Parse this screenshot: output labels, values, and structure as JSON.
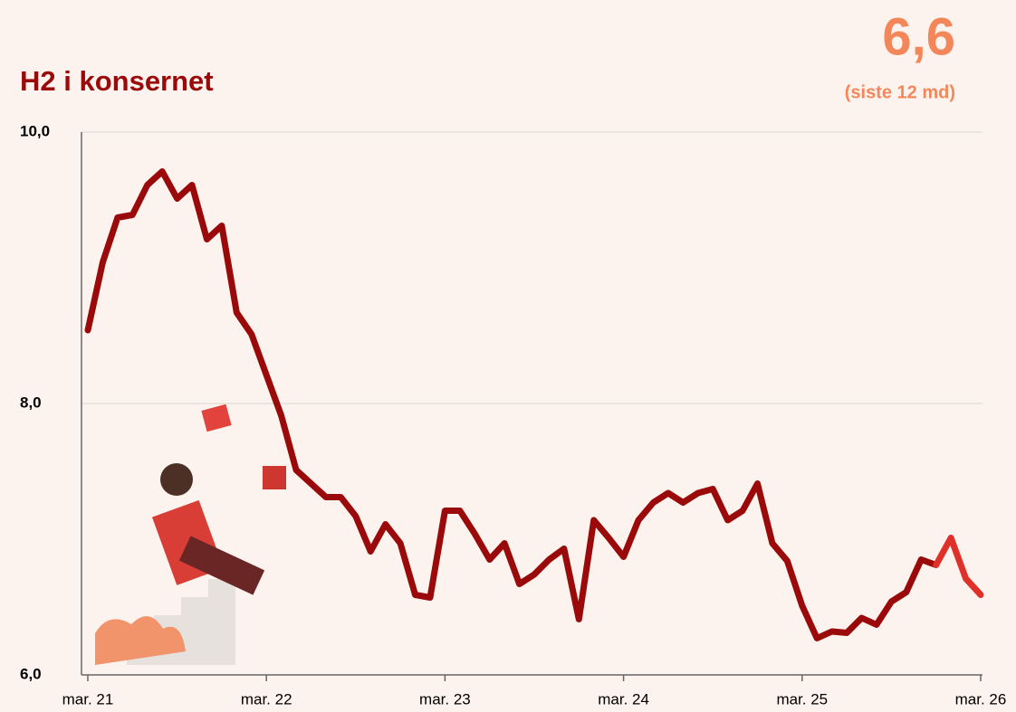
{
  "chart_data": {
    "type": "line",
    "title": "H2 i konsernet",
    "headline": "6,6",
    "headline_note": "(siste 12 md)",
    "categories": [
      "mar. 21",
      null,
      null,
      null,
      null,
      null,
      null,
      null,
      null,
      null,
      null,
      null,
      "mar. 22",
      null,
      null,
      null,
      null,
      null,
      null,
      null,
      null,
      null,
      null,
      null,
      "mar. 23",
      null,
      null,
      null,
      null,
      null,
      null,
      null,
      null,
      null,
      null,
      null,
      "mar. 24",
      null,
      null,
      null,
      null,
      null,
      null,
      null,
      null,
      null,
      null,
      null,
      "mar. 25",
      null,
      null,
      null,
      null,
      null,
      null,
      null,
      null,
      null,
      null,
      null,
      "mar. 26"
    ],
    "series": [
      {
        "color": "#9b0a0a",
        "values": [
          8.54,
          9.04,
          9.37,
          9.39,
          9.61,
          9.71,
          9.51,
          9.61,
          9.21,
          9.31,
          8.67,
          8.51,
          8.21,
          7.91,
          7.51,
          7.41,
          7.31,
          7.31,
          7.17,
          6.91,
          7.11,
          6.97,
          6.59,
          6.57,
          7.21,
          7.21,
          7.04,
          6.85,
          6.97,
          6.67,
          6.74,
          6.85,
          6.93,
          6.41,
          7.14,
          7.01,
          6.87,
          7.14,
          7.27,
          7.34,
          7.27,
          7.34,
          7.37,
          7.14,
          7.21,
          7.41,
          6.97,
          6.84,
          6.51,
          6.27,
          6.32,
          6.31,
          6.42,
          6.37,
          6.54,
          6.61,
          6.85,
          6.81,
          null,
          null,
          null
        ]
      },
      {
        "color": "#e0302a",
        "values": [
          null,
          null,
          null,
          null,
          null,
          null,
          null,
          null,
          null,
          null,
          null,
          null,
          null,
          null,
          null,
          null,
          null,
          null,
          null,
          null,
          null,
          null,
          null,
          null,
          null,
          null,
          null,
          null,
          null,
          null,
          null,
          null,
          null,
          null,
          null,
          null,
          null,
          null,
          null,
          null,
          null,
          null,
          null,
          null,
          null,
          null,
          null,
          null,
          null,
          null,
          null,
          null,
          null,
          null,
          null,
          null,
          null,
          6.81,
          7.01,
          6.71,
          6.59
        ]
      }
    ],
    "ylim": [
      6.0,
      10.0
    ],
    "yticks": [
      {
        "value": 6.0,
        "label": "6,0"
      },
      {
        "value": 8.0,
        "label": "8,0"
      },
      {
        "value": 10.0,
        "label": "10,0"
      }
    ],
    "grid": true
  }
}
